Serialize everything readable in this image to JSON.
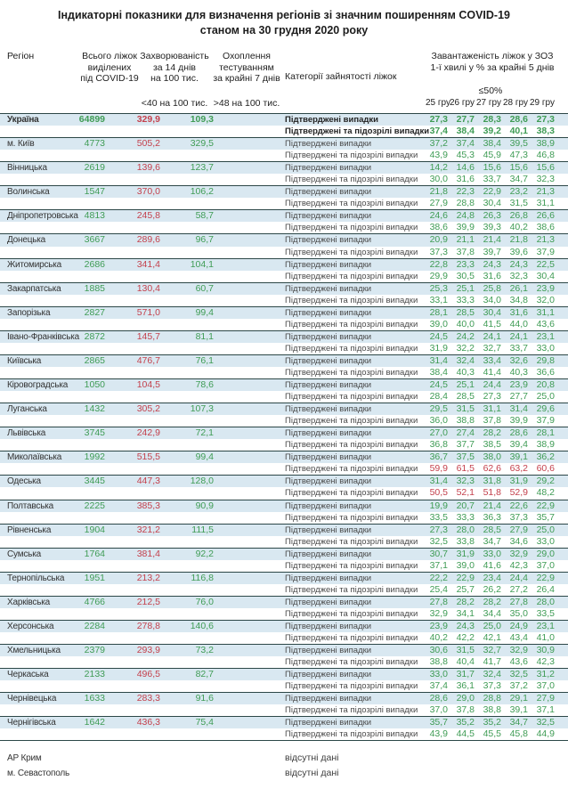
{
  "title": {
    "line1": "Індикаторні показники для визначення регіонів зі значним поширенням COVID-19",
    "line2": "станом на 30 грудня 2020 року"
  },
  "header": {
    "region": "Регіон",
    "beds": [
      "Всього ліжок",
      "виділених",
      "під COVID-19"
    ],
    "incidence": [
      "Захворюваність",
      "за 14 днів",
      "на 100 тис."
    ],
    "testing": [
      "Охоплення",
      "тестуванням",
      "за крайні 7 днів"
    ],
    "category": "Категорії зайнятості ліжок",
    "load": [
      "Завантаженість ліжок у ЗОЗ",
      "1-ї хвилі у % за крайні 5 днів"
    ],
    "incidence_threshold": "<40 на 100 тис.",
    "testing_threshold": ">48 на 100 тис.",
    "load_threshold": "≤50%",
    "days": [
      "25 гру",
      "26 гру",
      "27 гру",
      "28 гру",
      "29 гру"
    ]
  },
  "row_labels": {
    "confirmed": "Підтверджені випадки",
    "suspected": "Підтверджені та підозрілі випадки",
    "no_data": "відсутні дані"
  },
  "colors": {
    "green": "#3f9c55",
    "red": "#c4414d",
    "row_shade": "#d9e8f1",
    "border": "#2c4747"
  },
  "load_red_threshold": 50,
  "regions": [
    {
      "name": "Україна",
      "bold": true,
      "beds": "64899",
      "incidence": "329,9",
      "testing": "109,3",
      "confirmed": [
        "27,3",
        "27,7",
        "28,3",
        "28,6",
        "27,3"
      ],
      "suspected": [
        "37,4",
        "38,4",
        "39,2",
        "40,1",
        "38,3"
      ]
    },
    {
      "name": "м. Київ",
      "beds": "4773",
      "incidence": "505,2",
      "testing": "329,5",
      "confirmed": [
        "37,2",
        "37,4",
        "38,4",
        "39,5",
        "38,9"
      ],
      "suspected": [
        "43,9",
        "45,3",
        "45,9",
        "47,3",
        "46,8"
      ]
    },
    {
      "name": "Вінницька",
      "beds": "2619",
      "incidence": "139,6",
      "testing": "123,7",
      "confirmed": [
        "14,2",
        "14,6",
        "15,6",
        "15,6",
        "15,6"
      ],
      "suspected": [
        "30,0",
        "31,6",
        "33,7",
        "34,7",
        "32,3"
      ]
    },
    {
      "name": "Волинська",
      "beds": "1547",
      "incidence": "370,0",
      "testing": "106,2",
      "confirmed": [
        "21,8",
        "22,3",
        "22,9",
        "23,2",
        "21,3"
      ],
      "suspected": [
        "27,9",
        "28,8",
        "30,4",
        "31,5",
        "31,1"
      ]
    },
    {
      "name": "Дніпропетровська",
      "beds": "4813",
      "incidence": "245,8",
      "testing": "58,7",
      "confirmed": [
        "24,6",
        "24,8",
        "26,3",
        "26,8",
        "26,6"
      ],
      "suspected": [
        "38,6",
        "39,9",
        "39,3",
        "40,2",
        "38,6"
      ]
    },
    {
      "name": "Донецька",
      "beds": "3667",
      "incidence": "289,6",
      "testing": "96,7",
      "confirmed": [
        "20,9",
        "21,1",
        "21,4",
        "21,8",
        "21,3"
      ],
      "suspected": [
        "37,3",
        "37,8",
        "39,7",
        "39,6",
        "37,9"
      ]
    },
    {
      "name": "Житомирська",
      "beds": "2686",
      "incidence": "341,4",
      "testing": "104,1",
      "confirmed": [
        "22,8",
        "23,3",
        "24,3",
        "24,3",
        "22,5"
      ],
      "suspected": [
        "29,9",
        "30,5",
        "31,6",
        "32,3",
        "30,4"
      ]
    },
    {
      "name": "Закарпатська",
      "beds": "1885",
      "incidence": "130,4",
      "testing": "60,7",
      "confirmed": [
        "25,3",
        "25,1",
        "25,8",
        "26,1",
        "23,9"
      ],
      "suspected": [
        "33,1",
        "33,3",
        "34,0",
        "34,8",
        "32,0"
      ]
    },
    {
      "name": "Запорізька",
      "beds": "2827",
      "incidence": "571,0",
      "testing": "99,4",
      "confirmed": [
        "28,1",
        "28,5",
        "30,4",
        "31,6",
        "31,1"
      ],
      "suspected": [
        "39,0",
        "40,0",
        "41,5",
        "44,0",
        "43,6"
      ]
    },
    {
      "name": "Івано-Франківська",
      "beds": "2872",
      "incidence": "145,7",
      "testing": "81,1",
      "confirmed": [
        "24,5",
        "24,2",
        "24,1",
        "24,1",
        "23,1"
      ],
      "suspected": [
        "31,9",
        "32,2",
        "32,7",
        "33,7",
        "33,0"
      ]
    },
    {
      "name": "Київська",
      "beds": "2865",
      "incidence": "476,7",
      "testing": "76,1",
      "confirmed": [
        "31,4",
        "32,4",
        "33,4",
        "32,6",
        "29,8"
      ],
      "suspected": [
        "38,4",
        "40,3",
        "41,4",
        "40,3",
        "36,6"
      ]
    },
    {
      "name": "Кіровоградська",
      "beds": "1050",
      "incidence": "104,5",
      "testing": "78,6",
      "confirmed": [
        "24,5",
        "25,1",
        "24,4",
        "23,9",
        "20,8"
      ],
      "suspected": [
        "28,4",
        "28,5",
        "27,3",
        "27,7",
        "25,0"
      ]
    },
    {
      "name": "Луганська",
      "beds": "1432",
      "incidence": "305,2",
      "testing": "107,3",
      "confirmed": [
        "29,5",
        "31,5",
        "31,1",
        "31,4",
        "29,6"
      ],
      "suspected": [
        "36,0",
        "38,8",
        "37,8",
        "39,9",
        "37,9"
      ]
    },
    {
      "name": "Львівська",
      "beds": "3745",
      "incidence": "242,9",
      "testing": "72,1",
      "confirmed": [
        "27,0",
        "27,4",
        "28,2",
        "28,6",
        "28,1"
      ],
      "suspected": [
        "36,8",
        "37,7",
        "38,5",
        "39,4",
        "38,9"
      ]
    },
    {
      "name": "Миколаївська",
      "beds": "1992",
      "incidence": "515,5",
      "testing": "99,4",
      "confirmed": [
        "36,7",
        "37,5",
        "38,0",
        "39,1",
        "36,2"
      ],
      "suspected": [
        "59,9",
        "61,5",
        "62,6",
        "63,2",
        "60,6"
      ]
    },
    {
      "name": "Одеська",
      "beds": "3445",
      "incidence": "447,3",
      "testing": "128,0",
      "confirmed": [
        "31,4",
        "32,3",
        "31,8",
        "31,9",
        "29,2"
      ],
      "suspected": [
        "50,5",
        "52,1",
        "51,8",
        "52,9",
        "48,2"
      ]
    },
    {
      "name": "Полтавська",
      "beds": "2225",
      "incidence": "385,3",
      "testing": "90,9",
      "confirmed": [
        "19,9",
        "20,7",
        "21,4",
        "22,6",
        "22,9"
      ],
      "suspected": [
        "33,5",
        "33,3",
        "36,3",
        "37,3",
        "35,7"
      ]
    },
    {
      "name": "Рівненська",
      "beds": "1904",
      "incidence": "321,2",
      "testing": "111,5",
      "confirmed": [
        "27,3",
        "28,0",
        "28,5",
        "27,9",
        "25,0"
      ],
      "suspected": [
        "32,5",
        "33,8",
        "34,7",
        "34,6",
        "33,0"
      ]
    },
    {
      "name": "Сумська",
      "beds": "1764",
      "incidence": "381,4",
      "testing": "92,2",
      "confirmed": [
        "30,7",
        "31,9",
        "33,0",
        "32,9",
        "29,0"
      ],
      "suspected": [
        "37,1",
        "39,0",
        "41,6",
        "42,3",
        "37,0"
      ]
    },
    {
      "name": "Тернопільська",
      "beds": "1951",
      "incidence": "213,2",
      "testing": "116,8",
      "confirmed": [
        "22,2",
        "22,9",
        "23,4",
        "24,4",
        "22,9"
      ],
      "suspected": [
        "25,4",
        "25,7",
        "26,2",
        "27,2",
        "26,4"
      ]
    },
    {
      "name": "Харківська",
      "beds": "4766",
      "incidence": "212,5",
      "testing": "76,0",
      "confirmed": [
        "27,8",
        "28,2",
        "28,2",
        "27,8",
        "28,0"
      ],
      "suspected": [
        "32,9",
        "34,1",
        "34,4",
        "35,0",
        "33,5"
      ]
    },
    {
      "name": "Херсонська",
      "beds": "2284",
      "incidence": "278,8",
      "testing": "140,6",
      "confirmed": [
        "23,9",
        "24,3",
        "25,0",
        "24,9",
        "23,1"
      ],
      "suspected": [
        "40,2",
        "42,2",
        "42,1",
        "43,4",
        "41,0"
      ]
    },
    {
      "name": "Хмельницька",
      "beds": "2379",
      "incidence": "293,9",
      "testing": "73,2",
      "confirmed": [
        "30,6",
        "31,5",
        "32,7",
        "32,9",
        "30,9"
      ],
      "suspected": [
        "38,8",
        "40,4",
        "41,7",
        "43,6",
        "42,3"
      ]
    },
    {
      "name": "Черкаська",
      "beds": "2133",
      "incidence": "496,5",
      "testing": "82,7",
      "confirmed": [
        "33,0",
        "31,7",
        "32,4",
        "32,5",
        "31,2"
      ],
      "suspected": [
        "37,4",
        "36,1",
        "37,3",
        "37,2",
        "37,0"
      ]
    },
    {
      "name": "Чернівецька",
      "beds": "1633",
      "incidence": "283,3",
      "testing": "91,6",
      "confirmed": [
        "28,6",
        "29,0",
        "28,8",
        "29,1",
        "27,9"
      ],
      "suspected": [
        "37,0",
        "37,8",
        "38,8",
        "39,1",
        "37,1"
      ]
    },
    {
      "name": "Чернігівська",
      "beds": "1642",
      "incidence": "436,3",
      "testing": "75,4",
      "confirmed": [
        "35,7",
        "35,2",
        "35,2",
        "34,7",
        "32,5"
      ],
      "suspected": [
        "43,9",
        "44,5",
        "45,5",
        "45,8",
        "44,9"
      ]
    }
  ],
  "no_data_regions": [
    "АР Крим",
    "м. Севастополь"
  ]
}
